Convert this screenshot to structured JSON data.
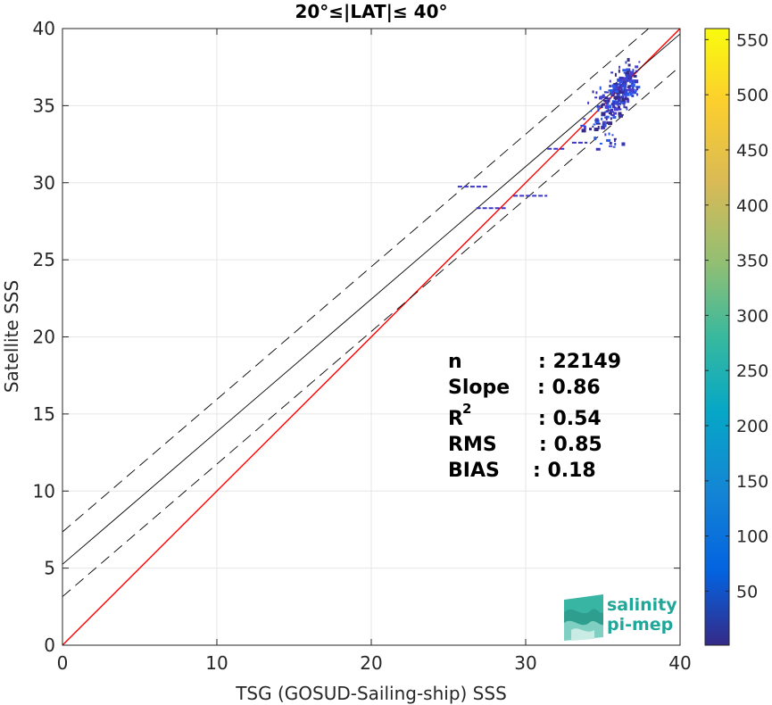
{
  "chart_data": {
    "type": "heatmap",
    "title": "20°≤|LAT|≤ 40°",
    "xlabel": "TSG (GOSUD-Sailing-ship) SSS",
    "ylabel": "Satellite SSS",
    "xlim": [
      0,
      40
    ],
    "ylim": [
      0,
      40
    ],
    "xticks": [
      "0",
      "10",
      "20",
      "30",
      "40"
    ],
    "yticks": [
      "0",
      "5",
      "10",
      "15",
      "20",
      "25",
      "30",
      "35",
      "40"
    ],
    "grid": true,
    "colorbar": {
      "ticks": [
        "50",
        "100",
        "150",
        "200",
        "250",
        "300",
        "350",
        "400",
        "450",
        "500",
        "550"
      ],
      "range": [
        1,
        560
      ],
      "colormap": "parula"
    },
    "lines": [
      {
        "name": "one-to-one",
        "color": "#ff0000",
        "style": "solid",
        "intercept": 0,
        "slope": 1
      },
      {
        "name": "regression",
        "color": "#000000",
        "style": "solid",
        "intercept": 5.25,
        "slope": 0.86
      },
      {
        "name": "upper-bound",
        "color": "#000000",
        "style": "dashed",
        "intercept": 7.35,
        "slope": 0.86
      },
      {
        "name": "lower-bound",
        "color": "#000000",
        "style": "dashed",
        "intercept": 3.15,
        "slope": 0.86
      }
    ],
    "density_points": [
      {
        "x": 36.2,
        "y": 36.0,
        "c": 55
      },
      {
        "x": 35.8,
        "y": 35.6,
        "c": 40
      },
      {
        "x": 36.5,
        "y": 36.6,
        "c": 35
      },
      {
        "x": 35.4,
        "y": 35.2,
        "c": 30
      },
      {
        "x": 36.0,
        "y": 36.8,
        "c": 25
      },
      {
        "x": 35.0,
        "y": 34.6,
        "c": 20
      },
      {
        "x": 34.8,
        "y": 33.6,
        "c": 12
      },
      {
        "x": 35.2,
        "y": 33.0,
        "c": 8
      },
      {
        "x": 34.2,
        "y": 34.2,
        "c": 10
      },
      {
        "x": 36.8,
        "y": 37.4,
        "c": 15
      },
      {
        "x": 34.5,
        "y": 35.8,
        "c": 6
      },
      {
        "x": 35.6,
        "y": 32.6,
        "c": 5
      }
    ],
    "outlier_segments": [
      {
        "x": [
          25.6,
          27.6
        ],
        "y": 29.75
      },
      {
        "x": [
          26.8,
          28.8
        ],
        "y": 28.35
      },
      {
        "x": [
          29.2,
          31.4
        ],
        "y": 29.15
      },
      {
        "x": [
          31.4,
          32.6
        ],
        "y": 32.2
      },
      {
        "x": [
          33.0,
          34.0
        ],
        "y": 32.6
      }
    ],
    "stats": {
      "n_label": "n",
      "n_value": ": 22149",
      "slope_label": "Slope",
      "slope_value": ": 0.86",
      "r2_label": "R",
      "r2_sup": "2",
      "r2_value": ": 0.54",
      "rms_label": "RMS",
      "rms_value": ": 0.85",
      "bias_label": "BIAS",
      "bias_value": ": 0.18"
    }
  },
  "logo": {
    "line1": "salinity",
    "line2": "pi-mep"
  }
}
